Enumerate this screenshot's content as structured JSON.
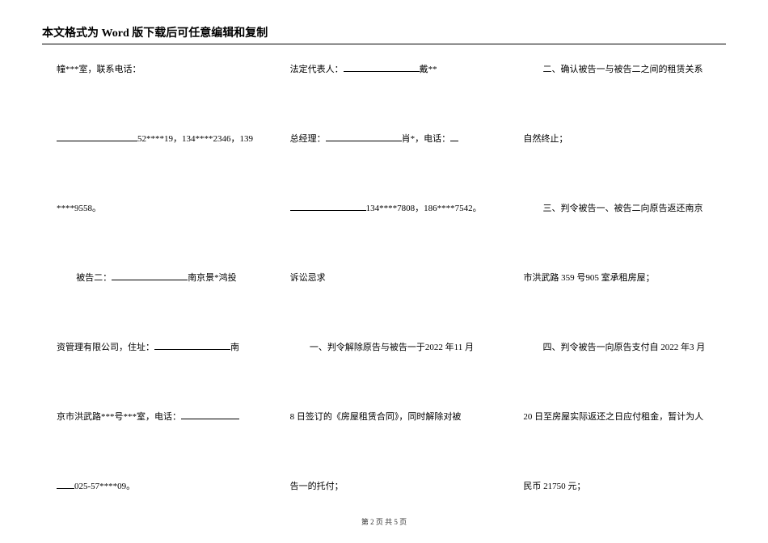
{
  "header": {
    "prefix": "本文格式为",
    "word": " Word ",
    "suffix": "版下载后可任意编辑和复制"
  },
  "col1": {
    "l1_a": "幢***室，联系电话：",
    "l2_a": "52****19，134****2346，139",
    "l3_a": "****9558。",
    "l4_a": "被告二：",
    "l4_b": "南京景*鸿投",
    "l5_a": "资管理有限公司，住址：",
    "l5_b": "南",
    "l6_a": "京市洪武路***号***室，电话：",
    "l7_a": "025-57****09。"
  },
  "col2": {
    "l1_a": "法定代表人：",
    "l1_b": "戴**",
    "l2_a": "总经理：",
    "l2_b": "肖*，电话：",
    "l3_a": "134****7808，186****7542。",
    "l4_a": "诉讼忌求",
    "l5_a": "一、判令解除原告与被告一于2022 年11 月",
    "l6_a": "8 日签订的《房屋租赁合同》，同时解除对被",
    "l7_a": "告一的托付；"
  },
  "col3": {
    "l1_a": "二、确认被告一与被告二之间的租赁关系",
    "l2_a": "自然终止；",
    "l3_a": "三、判令被告一、被告二向原告返还南京",
    "l4_a": "市洪武路 359 号905 室承租房屋；",
    "l5_a": "四、判令被告一向原告支付自 2022 年3 月",
    "l6_a": "20 日至房屋实际返还之日应付租金，暂计为人",
    "l7_a": "民币 21750 元；"
  },
  "footer": {
    "text": "第 2 页 共 5 页"
  }
}
